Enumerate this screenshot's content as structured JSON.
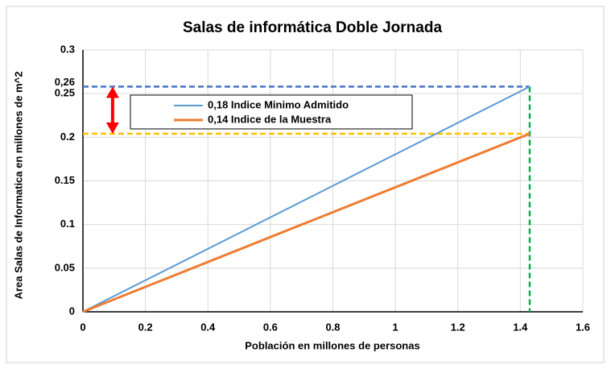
{
  "chart_data": {
    "type": "line",
    "title": "Salas de informática Doble Jornada",
    "x_label": "Población en millones de personas",
    "y_label": "Area  Salas de Informatica en millones de m^2",
    "x": [
      0,
      1.43
    ],
    "series": [
      {
        "name": "0,18 Indice Minimo Admitido",
        "color": "#5b9bd5",
        "values": [
          0,
          0.258
        ]
      },
      {
        "name": "0,14 Indice de la Muestra",
        "color": "#ed7d31",
        "values": [
          0,
          0.204
        ]
      }
    ],
    "xlim": [
      0,
      1.6
    ],
    "xticks": [
      0,
      0.2,
      0.4,
      0.6,
      0.8,
      1,
      1.2,
      1.4,
      1.6
    ],
    "ylim": [
      0,
      0.3
    ],
    "yticks": [
      0,
      0.05,
      0.1,
      0.15,
      0.2,
      0.25,
      0.3
    ],
    "grid": true,
    "reference_lines": [
      {
        "y": 0.258,
        "color": "#4472c4"
      },
      {
        "y": 0.204,
        "color": "#ffc000"
      }
    ],
    "vertical_line": {
      "x": 1.43,
      "color": "#00b050"
    },
    "y_annotation": {
      "value": 0.26,
      "label": "0,26"
    },
    "arrow": {
      "x": 0.095,
      "color": "#ff0000"
    }
  }
}
